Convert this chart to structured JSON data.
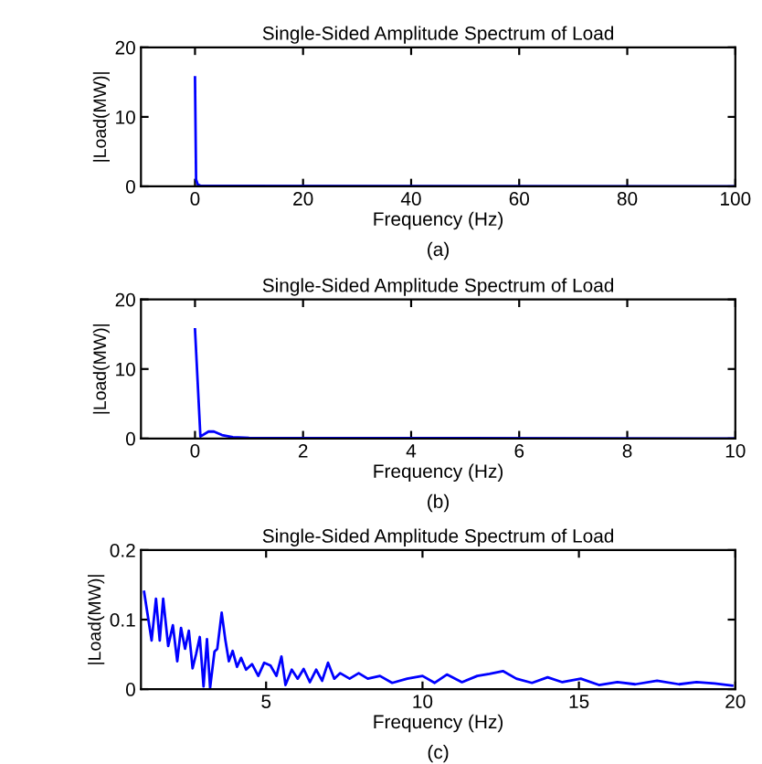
{
  "chart_data": [
    {
      "type": "line",
      "title": "Single-Sided Amplitude Spectrum of Load",
      "xlabel": "Frequency (Hz)",
      "ylabel": "|Load(MW)|",
      "annotations": [
        "(a)"
      ],
      "xlim": [
        -10,
        100
      ],
      "ylim": [
        0,
        20
      ],
      "xticks": [
        0,
        20,
        40,
        60,
        80,
        100
      ],
      "yticks": [
        0,
        10,
        20
      ],
      "grid": false,
      "legend": false,
      "series": [
        {
          "color": "#0000ff",
          "x": [
            0,
            0.2,
            0.5,
            1,
            100
          ],
          "values": [
            15.7,
            1,
            0.3,
            0.1,
            0
          ]
        }
      ]
    },
    {
      "type": "line",
      "title": "Single-Sided Amplitude Spectrum of Load",
      "xlabel": "Frequency (Hz)",
      "ylabel": "|Load(MW)|",
      "annotations": [
        "(b)"
      ],
      "xlim": [
        -1,
        10
      ],
      "ylim": [
        0,
        20
      ],
      "xticks": [
        0,
        2,
        4,
        6,
        8,
        10
      ],
      "yticks": [
        0,
        10,
        20
      ],
      "grid": false,
      "legend": false,
      "series": [
        {
          "color": "#0000ff",
          "x": [
            0,
            0.1,
            0.25,
            0.35,
            0.5,
            0.7,
            1,
            10
          ],
          "values": [
            15.7,
            0.3,
            1.0,
            1.0,
            0.5,
            0.2,
            0.1,
            0
          ]
        }
      ]
    },
    {
      "type": "line",
      "title": "Single-Sided Amplitude Spectrum of Load",
      "xlabel": "Frequency (Hz)",
      "ylabel": "|Load(MW)|",
      "annotations": [
        "(c)"
      ],
      "xlim": [
        1,
        20
      ],
      "ylim": [
        0,
        0.2
      ],
      "xticks": [
        5,
        10,
        15,
        20
      ],
      "yticks": [
        0,
        0.1,
        0.2
      ],
      "grid": false,
      "legend": false,
      "series": [
        {
          "color": "#0000ff",
          "x": [
            1.1,
            1.34,
            1.48,
            1.6,
            1.71,
            1.87,
            2.02,
            2.16,
            2.28,
            2.41,
            2.53,
            2.65,
            2.76,
            2.88,
            3.0,
            3.11,
            3.21,
            3.35,
            3.44,
            3.58,
            3.7,
            3.81,
            3.93,
            4.07,
            4.2,
            4.36,
            4.55,
            4.75,
            4.94,
            5.14,
            5.33,
            5.49,
            5.62,
            5.82,
            6.01,
            6.2,
            6.4,
            6.6,
            6.79,
            6.98,
            7.18,
            7.37,
            7.67,
            7.96,
            8.25,
            8.64,
            9.03,
            9.51,
            10.0,
            10.39,
            10.78,
            11.26,
            11.75,
            12.14,
            12.57,
            13.0,
            13.5,
            14.0,
            14.47,
            15.06,
            15.64,
            16.23,
            16.8,
            17.5,
            18.2,
            18.76,
            19.34,
            19.9
          ],
          "values": [
            0.14,
            0.07,
            0.13,
            0.07,
            0.13,
            0.062,
            0.092,
            0.04,
            0.088,
            0.058,
            0.084,
            0.03,
            0.05,
            0.075,
            0.004,
            0.072,
            0.002,
            0.054,
            0.058,
            0.11,
            0.07,
            0.04,
            0.055,
            0.032,
            0.045,
            0.028,
            0.036,
            0.019,
            0.038,
            0.034,
            0.019,
            0.047,
            0.006,
            0.028,
            0.015,
            0.029,
            0.01,
            0.028,
            0.012,
            0.038,
            0.015,
            0.023,
            0.015,
            0.023,
            0.015,
            0.019,
            0.009,
            0.015,
            0.019,
            0.009,
            0.021,
            0.01,
            0.019,
            0.022,
            0.026,
            0.015,
            0.009,
            0.017,
            0.01,
            0.015,
            0.006,
            0.01,
            0.007,
            0.012,
            0.007,
            0.01,
            0.008,
            0.005
          ]
        }
      ]
    }
  ]
}
